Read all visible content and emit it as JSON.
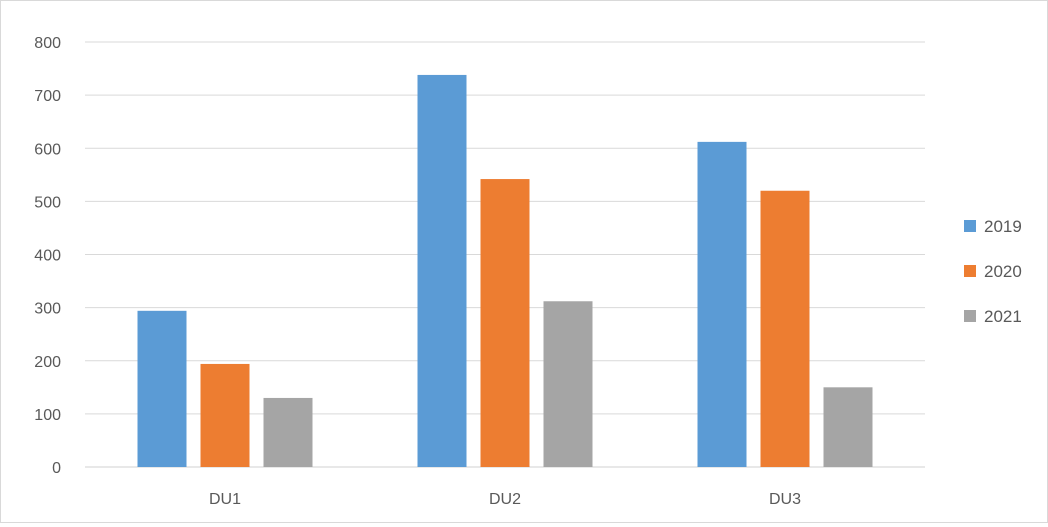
{
  "chart_data": {
    "type": "bar",
    "categories": [
      "DU1",
      "DU2",
      "DU3"
    ],
    "series": [
      {
        "name": "2019",
        "color": "#5b9bd5",
        "values": [
          294,
          738,
          612
        ]
      },
      {
        "name": "2020",
        "color": "#ed7d31",
        "values": [
          194,
          542,
          520
        ]
      },
      {
        "name": "2021",
        "color": "#a5a5a5",
        "values": [
          130,
          312,
          150
        ]
      }
    ],
    "ylim": [
      0,
      800
    ],
    "yticks": [
      "0",
      "100",
      "200",
      "300",
      "400",
      "500",
      "600",
      "700",
      "800"
    ],
    "grid": true,
    "legend": "right",
    "gridline_color": "#d9d9d9",
    "text_color": "#595959"
  }
}
